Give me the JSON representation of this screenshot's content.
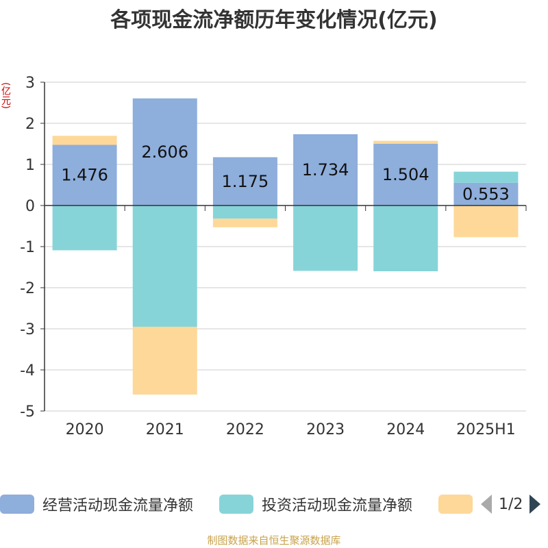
{
  "title": "各项现金流净额历年变化情况(亿元)",
  "unit_label": "(亿元)",
  "footer": "制图数据来自恒生聚源数据库",
  "legend": {
    "items": [
      {
        "label": "经营活动现金流量净额",
        "color": "#8eaedb"
      },
      {
        "label": "投资活动现金流量净额",
        "color": "#86d4d8"
      },
      {
        "label": "",
        "color": "#fdd899"
      }
    ],
    "page": "1/2"
  },
  "chart_data": {
    "type": "bar",
    "stacked": true,
    "categories": [
      "2020",
      "2021",
      "2022",
      "2023",
      "2024",
      "2025H1"
    ],
    "ylim": [
      -5,
      3
    ],
    "yticks": [
      3,
      2,
      1,
      0,
      -1,
      -2,
      -3,
      -4,
      -5
    ],
    "grid": true,
    "legend_position": "bottom",
    "series": [
      {
        "name": "经营活动现金流量净额",
        "color": "#8eaedb",
        "values": [
          1.476,
          2.606,
          1.175,
          1.734,
          1.504,
          0.553
        ],
        "labels": [
          "1.476",
          "2.606",
          "1.175",
          "1.734",
          "1.504",
          "0.553"
        ]
      },
      {
        "name": "投资活动现金流量净额",
        "color": "#86d4d8",
        "values": [
          -1.09,
          -2.95,
          -0.32,
          -1.59,
          -1.6,
          0.27
        ]
      },
      {
        "color": "#fdd899",
        "values": [
          0.22,
          -1.65,
          -0.21,
          0.0,
          0.07,
          -0.77
        ]
      }
    ]
  }
}
